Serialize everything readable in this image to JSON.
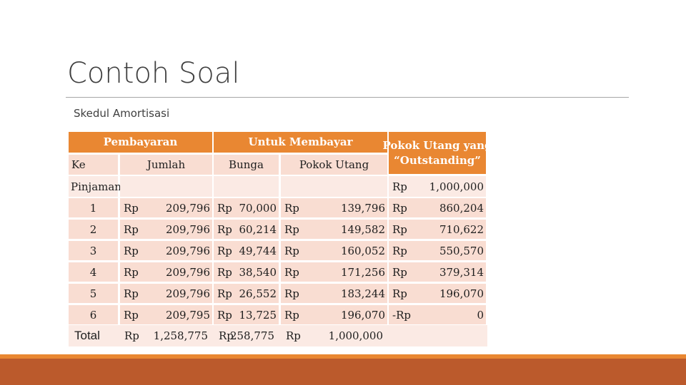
{
  "slide": {
    "title": "Contoh Soal",
    "subtitle": "Skedul Amortisasi"
  },
  "table": {
    "group_headers": {
      "payment": "Pembayaran",
      "for_paying": "Untuk Membayar",
      "outstanding_line1": "Pokok Utang yang",
      "outstanding_line2": "“Outstanding”"
    },
    "sub_headers": {
      "ke": "Ke",
      "jumlah": "Jumlah",
      "bunga": "Bunga",
      "pokok_utang": "Pokok Utang"
    },
    "loan_row": {
      "label": "Pinjaman",
      "outstanding_prefix": "Rp",
      "outstanding": "1,000,000"
    },
    "rows": [
      {
        "ke": "1",
        "jumlah_prefix": "Rp",
        "jumlah": "209,796",
        "bunga_prefix": "Rp",
        "bunga": "70,000",
        "pokok_prefix": "Rp",
        "pokok": "139,796",
        "outstanding_prefix": "Rp",
        "outstanding": "860,204"
      },
      {
        "ke": "2",
        "jumlah_prefix": "Rp",
        "jumlah": "209,796",
        "bunga_prefix": "Rp",
        "bunga": "60,214",
        "pokok_prefix": "Rp",
        "pokok": "149,582",
        "outstanding_prefix": "Rp",
        "outstanding": "710,622"
      },
      {
        "ke": "3",
        "jumlah_prefix": "Rp",
        "jumlah": "209,796",
        "bunga_prefix": "Rp",
        "bunga": "49,744",
        "pokok_prefix": "Rp",
        "pokok": "160,052",
        "outstanding_prefix": "Rp",
        "outstanding": "550,570"
      },
      {
        "ke": "4",
        "jumlah_prefix": "Rp",
        "jumlah": "209,796",
        "bunga_prefix": "Rp",
        "bunga": "38,540",
        "pokok_prefix": "Rp",
        "pokok": "171,256",
        "outstanding_prefix": "Rp",
        "outstanding": "379,314"
      },
      {
        "ke": "5",
        "jumlah_prefix": "Rp",
        "jumlah": "209,796",
        "bunga_prefix": "Rp",
        "bunga": "26,552",
        "pokok_prefix": "Rp",
        "pokok": "183,244",
        "outstanding_prefix": "Rp",
        "outstanding": "196,070"
      },
      {
        "ke": "6",
        "jumlah_prefix": "Rp",
        "jumlah": "209,795",
        "bunga_prefix": "Rp",
        "bunga": "13,725",
        "pokok_prefix": "Rp",
        "pokok": "196,070",
        "outstanding_prefix": "-Rp",
        "outstanding": "0"
      }
    ],
    "total_row": {
      "label": "Total",
      "jumlah_prefix": "Rp",
      "jumlah": "1,258,775",
      "bunga_prefix": "Rp",
      "bunga": "258,775",
      "pokok_prefix": "Rp",
      "pokok": "1,000,000"
    }
  },
  "theme": {
    "header_orange": "#e98732",
    "cell_peach": "#f9ddd2",
    "cell_pale": "#fbeae4",
    "footer_band_light": "#e98732",
    "footer_band_dark": "#bb5a2c"
  }
}
